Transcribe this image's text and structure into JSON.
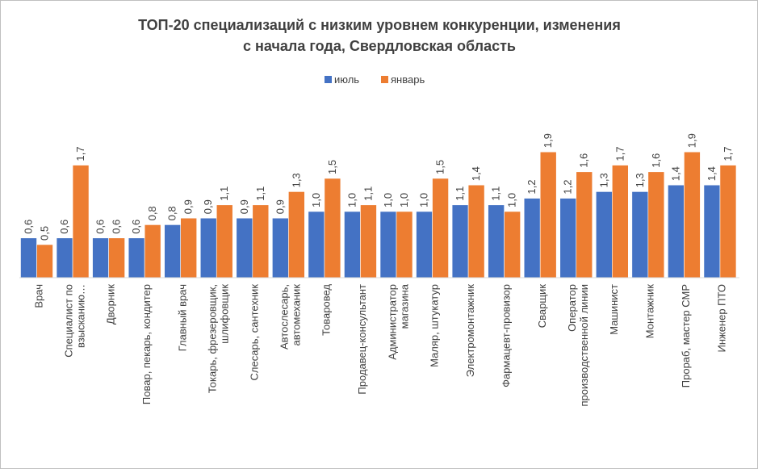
{
  "chart_data": {
    "type": "bar",
    "title_lines": [
      "ТОП-20 специализаций с низким уровнем конкуренции, изменения",
      "с начала года, Свердловская область"
    ],
    "legend_position": "top",
    "grid": false,
    "categories": [
      [
        "Врач"
      ],
      [
        "Специалист по",
        "взысканию…"
      ],
      [
        "Дворник"
      ],
      [
        "Повар, пекарь, кондитер"
      ],
      [
        "Главный врач"
      ],
      [
        "Токарь, фрезеровщик,",
        "шлифовщик"
      ],
      [
        "Слесарь, сантехник"
      ],
      [
        "Автослесарь,",
        "автомеханик"
      ],
      [
        "Товаровед"
      ],
      [
        "Продавец-консультант"
      ],
      [
        "Администратор",
        "магазина"
      ],
      [
        "Маляр, штукатур"
      ],
      [
        "Электромонтажник"
      ],
      [
        "Фармацевт-провизор"
      ],
      [
        "Сварщик"
      ],
      [
        "Оператор",
        "производственной линии"
      ],
      [
        "Машинист"
      ],
      [
        "Монтажник"
      ],
      [
        "Прораб, мастер СМР"
      ],
      [
        "Инженер ПТО"
      ]
    ],
    "series": [
      {
        "name": "июль",
        "color": "#4472c4",
        "values": [
          0.6,
          0.6,
          0.6,
          0.6,
          0.8,
          0.9,
          0.9,
          0.9,
          1.0,
          1.0,
          1.0,
          1.0,
          1.1,
          1.1,
          1.2,
          1.2,
          1.3,
          1.3,
          1.4,
          1.4
        ]
      },
      {
        "name": "январь",
        "color": "#ed7d31",
        "values": [
          0.5,
          1.7,
          0.6,
          0.8,
          0.9,
          1.1,
          1.1,
          1.3,
          1.5,
          1.1,
          1.0,
          1.5,
          1.4,
          1.0,
          1.9,
          1.6,
          1.7,
          1.6,
          1.9,
          1.7
        ]
      }
    ],
    "ylim": [
      0,
      2.2
    ]
  }
}
